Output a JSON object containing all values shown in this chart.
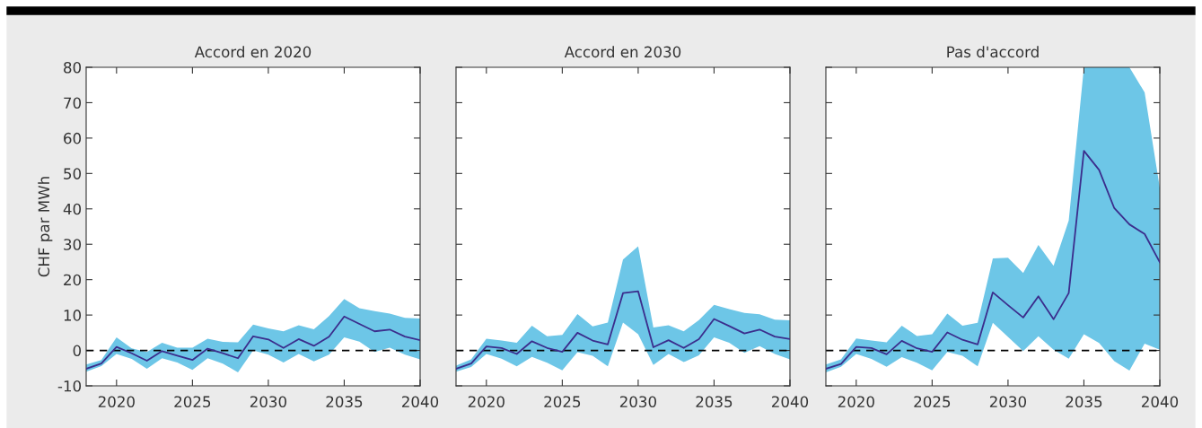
{
  "chart_data": [
    {
      "type": "line",
      "title": "Accord en 2020",
      "ylabel": "CHF par MWh",
      "xlim": [
        2018,
        2040
      ],
      "xticks": [
        2020,
        2025,
        2030,
        2035,
        2040
      ],
      "ylim": [
        -10,
        80
      ],
      "yticks": [
        -10,
        0,
        10,
        20,
        30,
        40,
        50,
        60,
        70,
        80
      ],
      "grid": false,
      "legend": false,
      "x": [
        2018,
        2019,
        2020,
        2021,
        2022,
        2023,
        2024,
        2025,
        2026,
        2027,
        2028,
        2029,
        2030,
        2031,
        2032,
        2033,
        2034,
        2035,
        2036,
        2037,
        2038,
        2039,
        2040
      ],
      "ref_lines": [
        {
          "axis": "y",
          "value": 0,
          "color": "#000000",
          "line_style": "dashed"
        }
      ],
      "series": [
        {
          "color": "#3b2d8c",
          "values": [
            -5.2,
            -3.7,
            1,
            -0.8,
            -2.9,
            -0.2,
            -1.5,
            -2.7,
            0.5,
            -0.8,
            -2.2,
            4,
            3.1,
            0.7,
            3.2,
            1.3,
            3.9,
            9.6,
            7.5,
            5.4,
            5.9,
            3.9,
            2.9
          ],
          "upper": [
            -4,
            -2.7,
            3.7,
            0.6,
            -0.4,
            2.2,
            0.8,
            0.8,
            3.3,
            2.4,
            2.3,
            7.3,
            6.2,
            5.4,
            7.1,
            6,
            9.7,
            14.5,
            11.9,
            11.1,
            10.4,
            9.2,
            9
          ],
          "lower": [
            -6,
            -4.4,
            -1,
            -2.4,
            -5.2,
            -2.2,
            -3.4,
            -5.5,
            -2.2,
            -3.7,
            -6.2,
            0,
            -1.2,
            -3.4,
            -1,
            -3.1,
            -1.2,
            3.7,
            2.5,
            -0.4,
            0.8,
            -1.2,
            -2.5
          ]
        }
      ]
    },
    {
      "type": "line",
      "title": "Accord en 2030",
      "xlim": [
        2018,
        2040
      ],
      "xticks": [
        2020,
        2025,
        2030,
        2035,
        2040
      ],
      "ylim": [
        -10,
        80
      ],
      "yticks": [
        -10,
        0,
        10,
        20,
        30,
        40,
        50,
        60,
        70,
        80
      ],
      "tick_labels": "x",
      "grid": false,
      "legend": false,
      "x": [
        2018,
        2019,
        2020,
        2021,
        2022,
        2023,
        2024,
        2025,
        2026,
        2027,
        2028,
        2029,
        2030,
        2031,
        2032,
        2033,
        2034,
        2035,
        2036,
        2037,
        2038,
        2039,
        2040
      ],
      "ref_lines": [
        {
          "axis": "y",
          "value": 0,
          "color": "#000000",
          "line_style": "dashed"
        }
      ],
      "series": [
        {
          "color": "#3b2d8c",
          "values": [
            -5.2,
            -3.7,
            1.1,
            0.7,
            -1,
            2.6,
            0.7,
            -0.4,
            5,
            2.8,
            1.7,
            16.2,
            16.7,
            0.9,
            2.9,
            0.7,
            3.2,
            8.9,
            6.9,
            4.8,
            5.9,
            3.9,
            3.2
          ],
          "upper": [
            -4.3,
            -2.5,
            3.3,
            2.8,
            2.2,
            7,
            4,
            4.4,
            10.3,
            6.8,
            7.9,
            25.7,
            29.4,
            6.5,
            7.1,
            5.4,
            8.6,
            12.9,
            11.7,
            10.6,
            10.2,
            8.7,
            8.5
          ],
          "lower": [
            -6,
            -4.7,
            -1,
            -2.3,
            -4.5,
            -1.8,
            -3.5,
            -5.6,
            -0.5,
            -1.5,
            -4.5,
            7.9,
            4.6,
            -4.1,
            -1,
            -3.3,
            -1.4,
            3.7,
            2.2,
            -0.7,
            1.2,
            -1,
            -2.5
          ]
        }
      ]
    },
    {
      "type": "line",
      "title": "Pas d'accord",
      "xlim": [
        2018,
        2040
      ],
      "xticks": [
        2020,
        2025,
        2030,
        2035,
        2040
      ],
      "ylim": [
        -10,
        80
      ],
      "yticks": [
        -10,
        0,
        10,
        20,
        30,
        40,
        50,
        60,
        70,
        80
      ],
      "tick_labels": "x",
      "grid": false,
      "legend": false,
      "x": [
        2018,
        2019,
        2020,
        2021,
        2022,
        2023,
        2024,
        2025,
        2026,
        2027,
        2028,
        2029,
        2030,
        2031,
        2032,
        2033,
        2034,
        2035,
        2036,
        2037,
        2038,
        2039,
        2040
      ],
      "ref_lines": [
        {
          "axis": "y",
          "value": 0,
          "color": "#000000",
          "line_style": "dashed"
        }
      ],
      "series": [
        {
          "color": "#3b2d8c",
          "values": [
            -5.2,
            -3.8,
            1,
            0.7,
            -1.1,
            2.7,
            0.6,
            -0.4,
            5.1,
            3,
            1.7,
            16.4,
            12.8,
            9.3,
            15.3,
            8.8,
            16.2,
            56.4,
            51,
            40.2,
            35.6,
            32.9,
            24.9
          ],
          "upper": [
            -4,
            -2.5,
            3.4,
            2.8,
            2.3,
            7,
            4.1,
            4.6,
            10.4,
            7,
            7.8,
            26,
            26.2,
            21.9,
            29.8,
            23.9,
            36.7,
            80,
            80,
            80,
            80,
            72.9,
            45.9
          ],
          "lower": [
            -6.2,
            -4.6,
            -1,
            -2.4,
            -4.6,
            -1.9,
            -3.5,
            -5.6,
            -0.4,
            -1.5,
            -4.5,
            7.8,
            3.8,
            -0.2,
            4,
            0.2,
            -2.3,
            4.6,
            2.1,
            -3,
            -5.7,
            1.9,
            0.2
          ]
        }
      ]
    }
  ]
}
